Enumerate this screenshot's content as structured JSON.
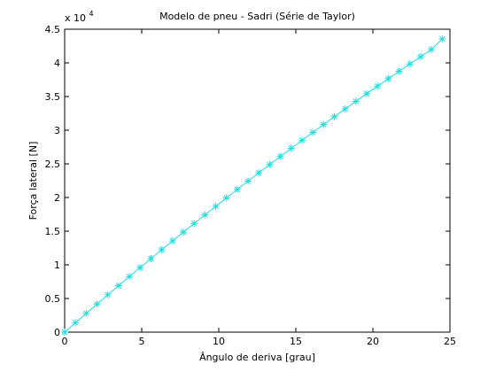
{
  "chart_data": {
    "type": "line",
    "title": "Modelo de pneu - Sadri (Série de Taylor)",
    "xlabel": "Ângulo de deriva [grau]",
    "ylabel": "Força lateral [N]",
    "y_exponent_base": "x 10",
    "y_exponent_power": "4",
    "xlim": [
      0,
      25
    ],
    "ylim": [
      0,
      45000
    ],
    "xticks": [
      0,
      5,
      10,
      15,
      20,
      25
    ],
    "yticks": [
      0,
      5000,
      10000,
      15000,
      20000,
      25000,
      30000,
      35000,
      40000,
      45000
    ],
    "xtick_labels": [
      "0",
      "5",
      "10",
      "15",
      "20",
      "25"
    ],
    "ytick_labels": [
      "0",
      "0.5",
      "1",
      "1.5",
      "2",
      "2.5",
      "3",
      "3.5",
      "4",
      "4.5"
    ],
    "grid": false,
    "series": [
      {
        "marker": "asterisk",
        "color": "#22dddd",
        "x": [
          0,
          0.7,
          1.4,
          2.1,
          2.8,
          3.5,
          4.2,
          4.9,
          5.6,
          6.3,
          7.0,
          7.7,
          8.4,
          9.1,
          9.8,
          10.5,
          11.2,
          11.9,
          12.6,
          13.3,
          14.0,
          14.7,
          15.4,
          16.1,
          16.8,
          17.5,
          18.2,
          18.9,
          19.6,
          20.3,
          21.0,
          21.7,
          22.4,
          23.1,
          23.8,
          24.5
        ],
        "y": [
          0,
          1400,
          2790,
          4170,
          5540,
          6900,
          8250,
          9590,
          10920,
          12240,
          13550,
          14850,
          16140,
          17420,
          18690,
          19950,
          21200,
          22440,
          23670,
          24890,
          26100,
          27300,
          28490,
          29670,
          30840,
          32000,
          33150,
          34290,
          35420,
          36540,
          37650,
          38750,
          39840,
          40920,
          41990,
          43550
        ]
      }
    ]
  }
}
